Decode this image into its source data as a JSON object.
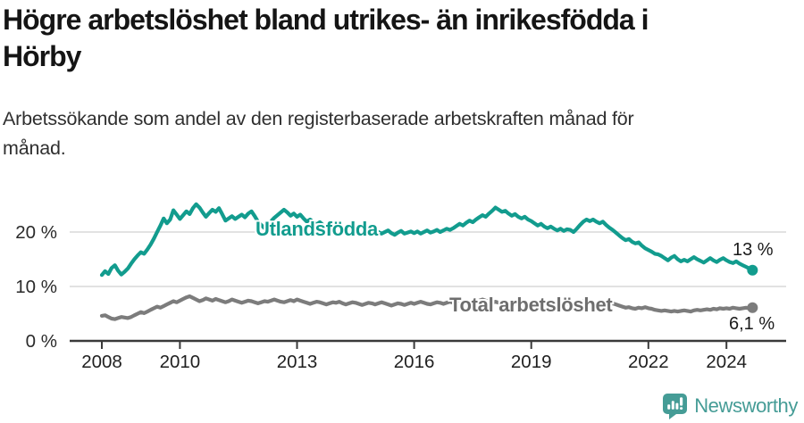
{
  "header": {
    "title_lines": [
      "Högre arbetslöshet bland utrikes- än inrikesfödda i",
      "Hörby"
    ],
    "subtitle_lines": [
      "Arbetssökande som andel av den registerbaserade arbetskraften månad för",
      "månad."
    ]
  },
  "chart_data": {
    "type": "line",
    "title": "Högre arbetslöshet bland utrikes- än inrikesfödda i Hörby",
    "subtitle": "Arbetssökande som andel av den registerbaserade arbetskraften månad för månad.",
    "x_start": "2008-01",
    "x_end": "2024-09",
    "x_frequency": "monthly",
    "ylim": [
      0,
      26
    ],
    "grid": "horizontal",
    "yticks": [
      {
        "label": "0 %",
        "value": 0
      },
      {
        "label": "10 %",
        "value": 10
      },
      {
        "label": "20 %",
        "value": 20
      }
    ],
    "xticks": [
      {
        "label": "2008",
        "year": 2008
      },
      {
        "label": "2010",
        "year": 2010
      },
      {
        "label": "2013",
        "year": 2013
      },
      {
        "label": "2016",
        "year": 2016
      },
      {
        "label": "2019",
        "year": 2019
      },
      {
        "label": "2022",
        "year": 2022
      },
      {
        "label": "2024",
        "year": 2024
      }
    ],
    "series": [
      {
        "name": "Total arbetslöshet",
        "color": "#7c7c7c",
        "end_label": "6,1 %",
        "end_value": 6.1,
        "values": [
          4.6,
          4.7,
          4.4,
          4.1,
          4.0,
          4.2,
          4.4,
          4.3,
          4.2,
          4.4,
          4.7,
          5.0,
          5.3,
          5.1,
          5.4,
          5.7,
          6.0,
          6.3,
          6.1,
          6.4,
          6.7,
          7.0,
          7.3,
          7.1,
          7.4,
          7.7,
          8.0,
          8.2,
          7.9,
          7.6,
          7.3,
          7.5,
          7.8,
          7.6,
          7.4,
          7.7,
          7.5,
          7.3,
          7.1,
          7.3,
          7.6,
          7.4,
          7.2,
          7.0,
          7.2,
          7.4,
          7.3,
          7.1,
          6.9,
          7.1,
          7.3,
          7.2,
          7.4,
          7.6,
          7.4,
          7.2,
          7.1,
          7.3,
          7.5,
          7.3,
          7.6,
          7.4,
          7.2,
          7.0,
          6.8,
          7.0,
          7.2,
          7.1,
          6.9,
          6.7,
          6.9,
          7.1,
          7.0,
          7.2,
          6.9,
          6.7,
          6.9,
          7.1,
          7.0,
          6.8,
          6.6,
          6.8,
          7.0,
          6.9,
          6.7,
          6.9,
          7.1,
          6.9,
          6.7,
          6.5,
          6.7,
          6.9,
          6.8,
          6.6,
          6.8,
          7.0,
          6.8,
          7.0,
          7.2,
          7.0,
          6.8,
          6.7,
          6.9,
          7.1,
          7.0,
          6.8,
          7.0,
          7.2,
          7.0,
          7.2,
          7.4,
          7.2,
          7.0,
          6.9,
          7.1,
          7.3,
          7.4,
          7.6,
          7.4,
          7.2,
          7.0,
          7.2,
          7.0,
          6.8,
          6.6,
          6.8,
          7.0,
          6.9,
          6.7,
          6.5,
          6.7,
          6.9,
          6.7,
          6.5,
          6.7,
          6.9,
          6.8,
          6.6,
          6.8,
          6.7,
          6.5,
          6.7,
          6.6,
          6.8,
          6.7,
          6.5,
          6.8,
          7.1,
          7.3,
          7.1,
          6.9,
          7.0,
          6.8,
          6.7,
          6.9,
          6.8,
          6.7,
          6.9,
          6.7,
          6.5,
          6.3,
          6.1,
          6.2,
          6.0,
          5.9,
          6.1,
          6.0,
          6.2,
          6.0,
          5.9,
          5.7,
          5.6,
          5.5,
          5.6,
          5.5,
          5.4,
          5.5,
          5.4,
          5.5,
          5.6,
          5.5,
          5.4,
          5.6,
          5.7,
          5.6,
          5.7,
          5.8,
          5.7,
          5.9,
          5.8,
          6.0,
          5.9,
          6.0,
          5.9,
          6.1,
          6.0,
          5.9,
          6.0,
          6.1,
          6.0,
          6.1
        ]
      },
      {
        "name": "Utlandsfödda",
        "color": "#129c8e",
        "end_label": "13 %",
        "end_value": 13.0,
        "values": [
          12.1,
          12.8,
          12.3,
          13.4,
          13.9,
          12.9,
          12.2,
          12.7,
          13.3,
          14.2,
          15.0,
          15.7,
          16.3,
          16.0,
          16.8,
          17.7,
          18.8,
          20.0,
          21.2,
          22.5,
          21.6,
          22.3,
          24.0,
          23.2,
          22.4,
          23.1,
          23.8,
          23.3,
          24.4,
          25.1,
          24.5,
          23.6,
          22.8,
          23.5,
          24.1,
          23.7,
          24.4,
          23.3,
          22.1,
          22.5,
          22.9,
          22.4,
          22.8,
          23.2,
          22.7,
          23.4,
          23.8,
          22.9,
          21.9,
          21.3,
          20.7,
          21.4,
          22.0,
          22.6,
          23.1,
          23.6,
          24.1,
          23.6,
          23.0,
          23.4,
          22.8,
          23.2,
          22.5,
          21.9,
          22.3,
          21.8,
          21.4,
          21.8,
          21.3,
          20.9,
          21.3,
          21.0,
          21.4,
          21.0,
          20.7,
          21.1,
          20.8,
          20.5,
          20.9,
          20.5,
          20.2,
          20.6,
          20.2,
          20.0,
          20.4,
          20.0,
          19.7,
          20.0,
          20.3,
          19.8,
          19.5,
          19.9,
          20.2,
          19.7,
          19.9,
          20.1,
          19.8,
          20.1,
          19.7,
          20.0,
          20.3,
          19.9,
          20.1,
          20.4,
          20.0,
          20.3,
          20.6,
          20.4,
          20.7,
          21.1,
          21.5,
          21.2,
          21.7,
          22.1,
          21.8,
          22.3,
          22.7,
          23.1,
          22.8,
          23.4,
          23.9,
          24.5,
          24.1,
          23.7,
          23.9,
          23.4,
          23.0,
          23.3,
          22.8,
          22.5,
          22.8,
          22.3,
          22.0,
          21.6,
          21.2,
          21.5,
          21.0,
          20.7,
          21.0,
          20.6,
          20.3,
          20.6,
          20.2,
          20.5,
          20.4,
          20.0,
          20.6,
          21.3,
          21.9,
          22.3,
          22.0,
          22.3,
          21.9,
          21.6,
          21.9,
          21.3,
          20.8,
          20.4,
          19.9,
          19.4,
          18.9,
          18.5,
          18.7,
          18.2,
          17.9,
          18.1,
          17.5,
          17.0,
          16.7,
          16.4,
          16.0,
          15.9,
          15.6,
          15.2,
          14.8,
          15.3,
          15.6,
          15.0,
          14.6,
          14.9,
          14.6,
          15.0,
          15.4,
          15.0,
          14.7,
          14.4,
          14.8,
          15.2,
          14.8,
          14.5,
          14.9,
          15.2,
          14.8,
          14.5,
          14.3,
          14.6,
          14.2,
          13.9,
          13.6,
          13.3,
          13.0
        ]
      }
    ]
  },
  "footer": {
    "brand": "Newsworthy"
  },
  "colors": {
    "teal_series": "#129c8e",
    "gray_series": "#7c7c7c",
    "gridline": "#d9d9d9",
    "axis": "#3a3a3a",
    "brand_teal": "#459c96"
  }
}
